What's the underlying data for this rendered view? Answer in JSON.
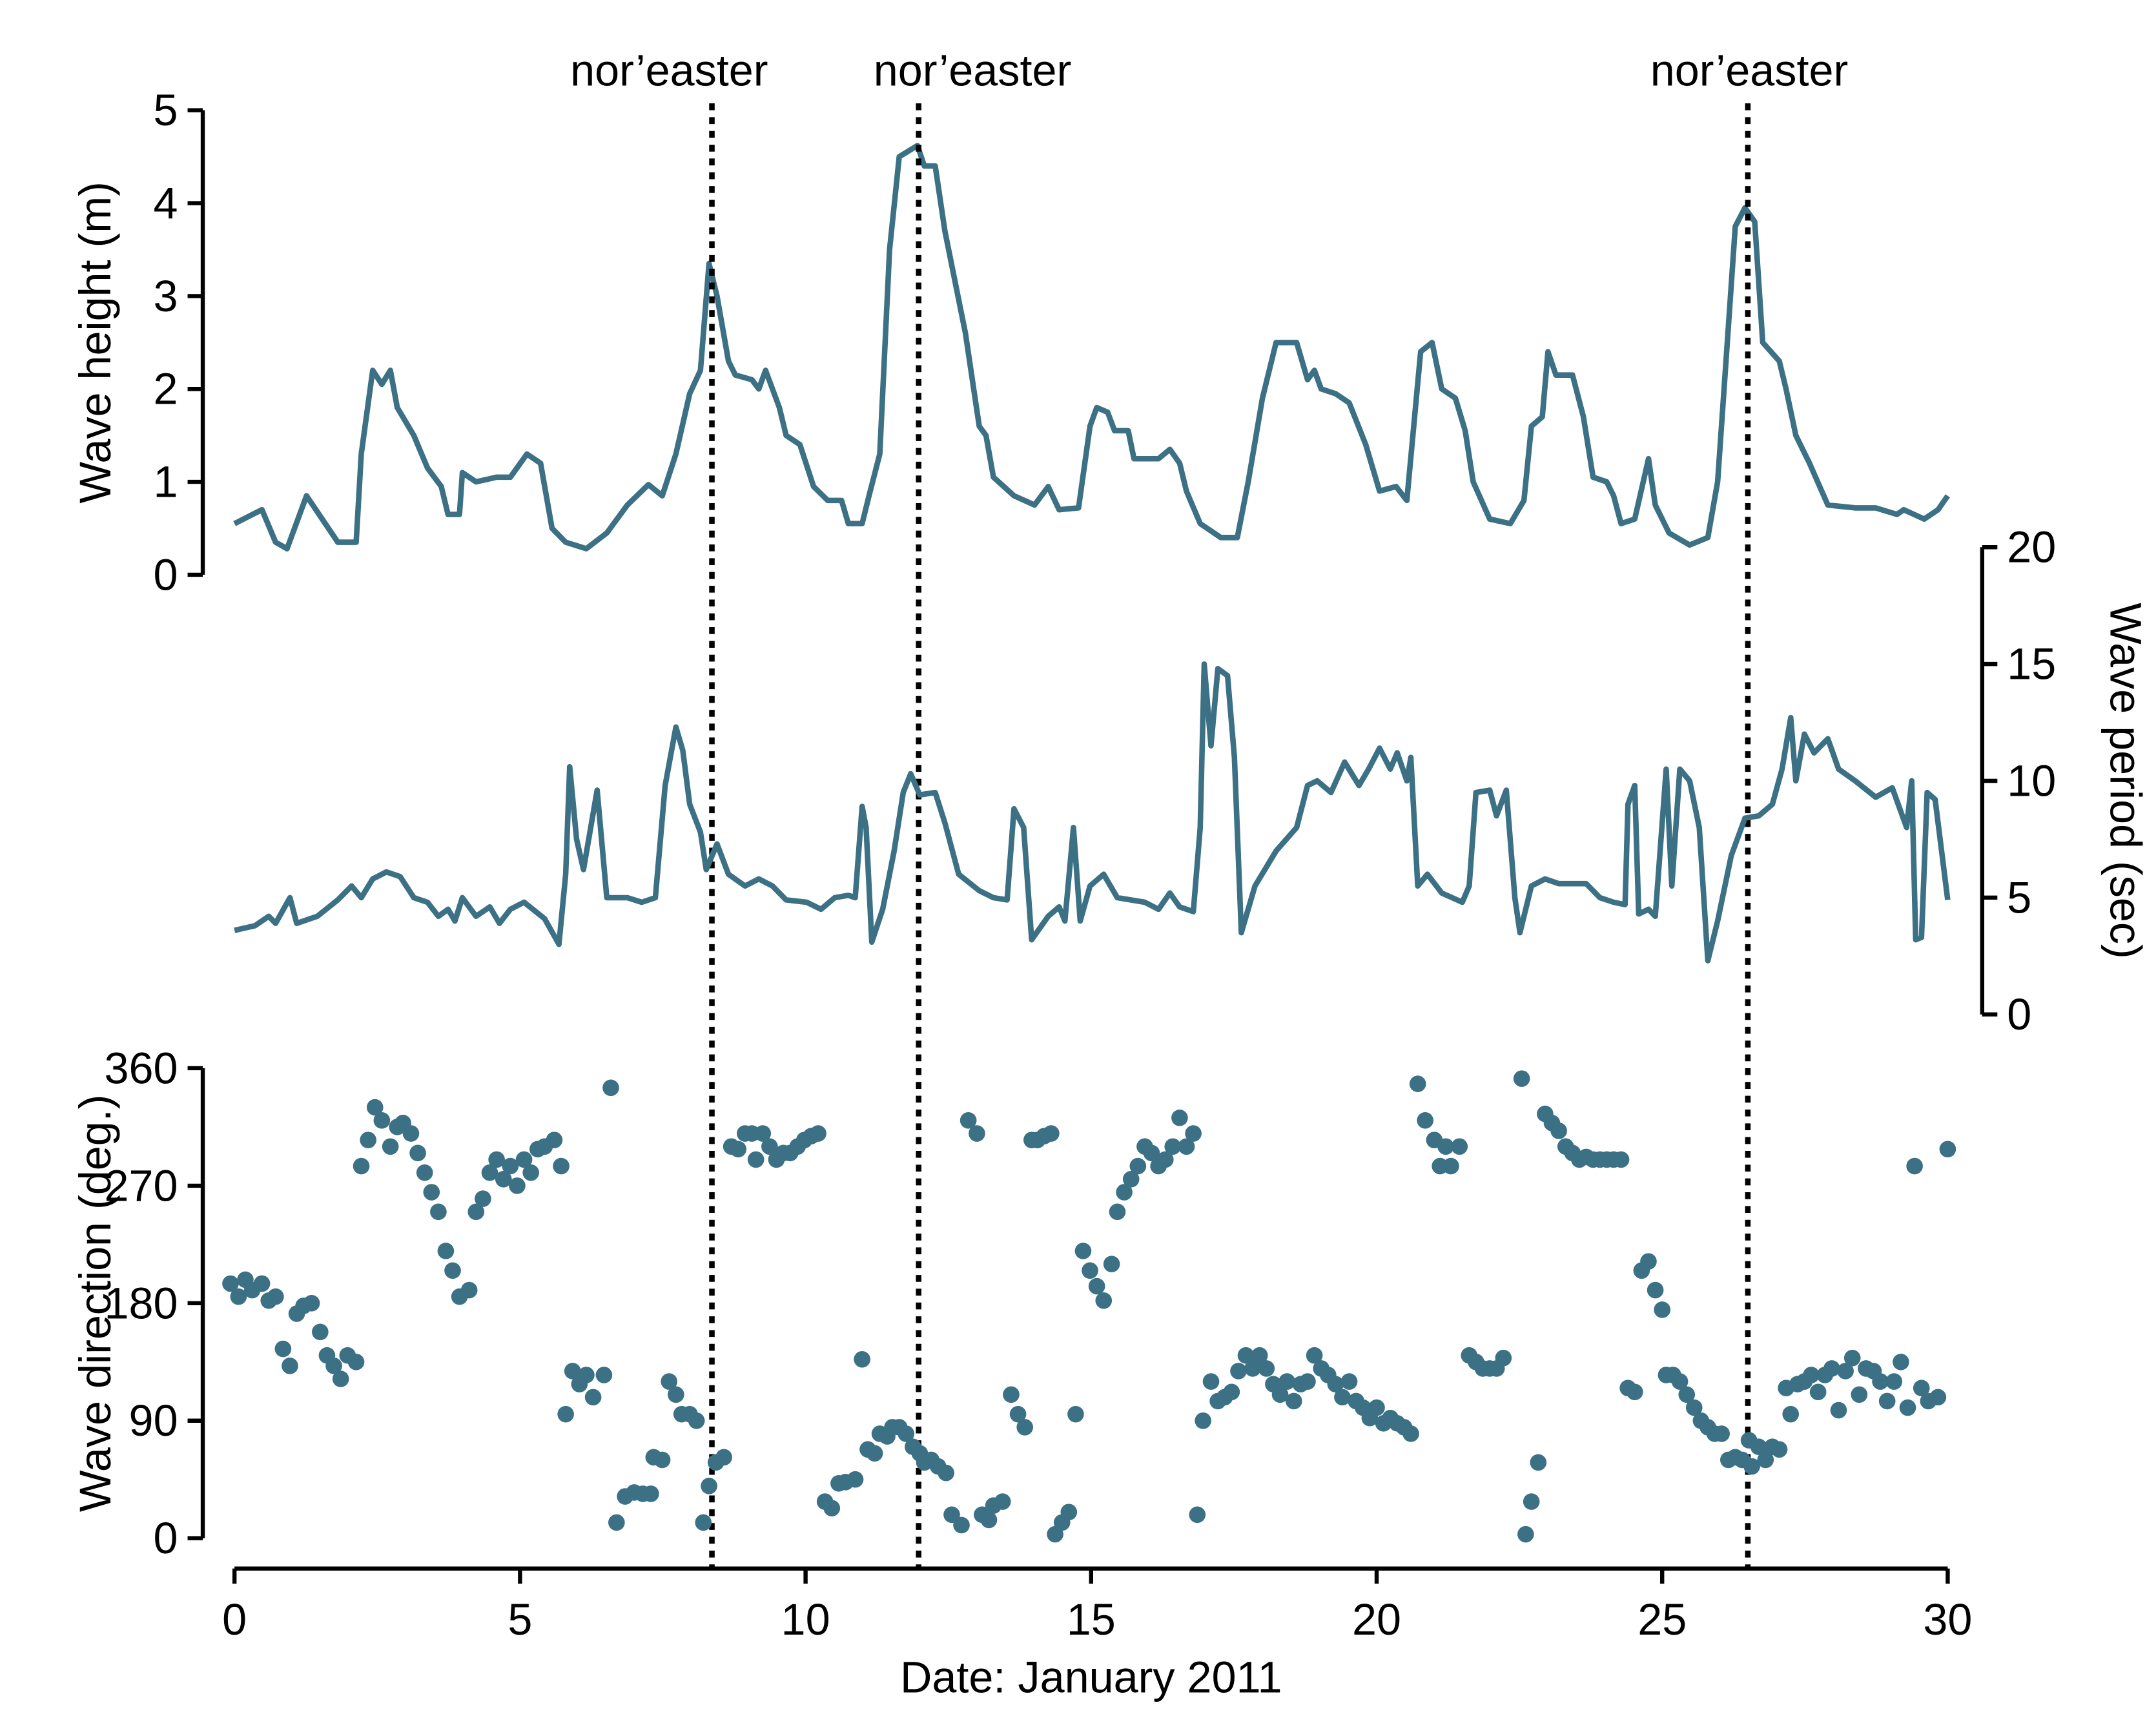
{
  "chart_data": [
    {
      "type": "line",
      "ylabel": "Wave height (m)",
      "color": "#3b7085",
      "xlim": [
        0,
        30
      ],
      "ylim": [
        0,
        5
      ],
      "yticks": [
        0,
        1,
        2,
        3,
        4,
        5
      ],
      "y_axis_side": "left",
      "annotations": [
        {
          "x": 8.36,
          "label": "nor’easter"
        },
        {
          "x": 11.98,
          "label": "nor’easter"
        },
        {
          "x": 26.5,
          "label": "nor’easter"
        }
      ],
      "x": [
        0,
        0.48,
        0.72,
        0.92,
        1.26,
        1.81,
        2.13,
        2.22,
        2.42,
        2.58,
        2.73,
        2.85,
        3.14,
        3.38,
        3.62,
        3.74,
        3.94,
        3.99,
        4.23,
        4.59,
        4.83,
        5.12,
        5.36,
        5.56,
        5.8,
        6.16,
        6.52,
        6.88,
        7.25,
        7.49,
        7.73,
        7.97,
        8.16,
        8.31,
        8.45,
        8.65,
        8.77,
        9.06,
        9.18,
        9.3,
        9.54,
        9.66,
        9.9,
        10.14,
        10.39,
        10.63,
        10.75,
        10.99,
        11.11,
        11.3,
        11.47,
        11.64,
        11.96,
        12.08,
        12.27,
        12.44,
        12.8,
        13.04,
        13.16,
        13.29,
        13.65,
        14.01,
        14.25,
        14.44,
        14.78,
        14.98,
        15.1,
        15.29,
        15.41,
        15.65,
        15.75,
        16.18,
        16.38,
        16.55,
        16.67,
        16.91,
        17.27,
        17.56,
        17.75,
        18.0,
        18.24,
        18.6,
        18.79,
        18.91,
        19.03,
        19.28,
        19.52,
        19.81,
        20.05,
        20.34,
        20.53,
        20.77,
        20.97,
        21.14,
        21.38,
        21.55,
        21.69,
        21.98,
        22.34,
        22.58,
        22.71,
        22.9,
        23.0,
        23.14,
        23.43,
        23.62,
        23.79,
        24.03,
        24.15,
        24.28,
        24.52,
        24.76,
        24.88,
        25.12,
        25.48,
        25.8,
        25.97,
        26.14,
        26.28,
        26.45,
        26.62,
        26.76,
        27.05,
        27.17,
        27.34,
        27.58,
        27.9,
        28.38,
        28.74,
        29.11,
        29.23,
        29.59,
        29.83,
        30
      ],
      "values": [
        0.55,
        0.7,
        0.35,
        0.28,
        0.85,
        0.35,
        0.35,
        1.3,
        2.2,
        2.05,
        2.2,
        1.8,
        1.5,
        1.15,
        0.95,
        0.65,
        0.65,
        1.1,
        1.0,
        1.05,
        1.05,
        1.3,
        1.2,
        0.5,
        0.35,
        0.28,
        0.45,
        0.75,
        0.97,
        0.85,
        1.3,
        1.95,
        2.2,
        3.35,
        3.0,
        2.3,
        2.15,
        2.1,
        2.0,
        2.2,
        1.8,
        1.5,
        1.4,
        0.95,
        0.8,
        0.8,
        0.55,
        0.55,
        0.85,
        1.3,
        3.5,
        4.5,
        4.62,
        4.4,
        4.4,
        3.7,
        2.6,
        1.6,
        1.5,
        1.05,
        0.85,
        0.75,
        0.95,
        0.7,
        0.72,
        1.6,
        1.8,
        1.75,
        1.55,
        1.55,
        1.25,
        1.25,
        1.35,
        1.2,
        0.9,
        0.55,
        0.4,
        0.4,
        1.0,
        1.9,
        2.5,
        2.5,
        2.1,
        2.2,
        2.0,
        1.95,
        1.85,
        1.4,
        0.9,
        0.95,
        0.8,
        2.4,
        2.5,
        2.0,
        1.9,
        1.55,
        1.0,
        0.6,
        0.55,
        0.8,
        1.6,
        1.7,
        2.4,
        2.15,
        2.15,
        1.7,
        1.05,
        1.0,
        0.85,
        0.55,
        0.6,
        1.25,
        0.75,
        0.45,
        0.32,
        0.4,
        1.0,
        2.5,
        3.75,
        3.95,
        3.8,
        2.5,
        2.3,
        2.0,
        1.5,
        1.2,
        0.75,
        0.72,
        0.72,
        0.65,
        0.7,
        0.6,
        0.7,
        0.85
      ]
    },
    {
      "type": "line",
      "ylabel": "Wave period (sec)",
      "color": "#3b7085",
      "xlim": [
        0,
        30
      ],
      "ylim": [
        0,
        20
      ],
      "yticks": [
        0,
        5,
        10,
        15,
        20
      ],
      "y_axis_side": "right",
      "x": [
        0,
        0.36,
        0.6,
        0.72,
        0.97,
        1.09,
        1.45,
        1.81,
        2.05,
        2.22,
        2.42,
        2.66,
        2.9,
        3.14,
        3.38,
        3.57,
        3.74,
        3.86,
        3.99,
        4.23,
        4.47,
        4.64,
        4.83,
        5.07,
        5.43,
        5.68,
        5.8,
        5.87,
        5.99,
        6.11,
        6.35,
        6.52,
        6.69,
        6.88,
        7.13,
        7.37,
        7.54,
        7.73,
        7.85,
        7.97,
        8.16,
        8.26,
        8.45,
        8.65,
        8.94,
        9.18,
        9.42,
        9.66,
        10.02,
        10.27,
        10.51,
        10.75,
        10.87,
        10.99,
        11.06,
        11.16,
        11.35,
        11.55,
        11.71,
        11.84,
        12.0,
        12.27,
        12.44,
        12.68,
        13.04,
        13.29,
        13.53,
        13.65,
        13.82,
        13.96,
        14.25,
        14.44,
        14.54,
        14.69,
        14.81,
        14.98,
        15.22,
        15.46,
        15.94,
        16.18,
        16.38,
        16.55,
        16.79,
        16.91,
        16.98,
        17.1,
        17.22,
        17.39,
        17.51,
        17.63,
        17.87,
        18.24,
        18.6,
        18.79,
        18.96,
        19.2,
        19.44,
        19.69,
        19.86,
        20.05,
        20.24,
        20.36,
        20.53,
        20.6,
        20.72,
        20.89,
        21.14,
        21.5,
        21.62,
        21.74,
        21.98,
        22.1,
        22.27,
        22.42,
        22.51,
        22.71,
        22.95,
        23.19,
        23.67,
        23.91,
        24.15,
        24.35,
        24.4,
        24.52,
        24.59,
        24.76,
        24.88,
        25.07,
        25.17,
        25.31,
        25.48,
        25.65,
        25.8,
        25.97,
        26.21,
        26.45,
        26.69,
        26.93,
        27.1,
        27.25,
        27.34,
        27.49,
        27.66,
        27.9,
        28.09,
        28.38,
        28.74,
        29.03,
        29.28,
        29.37,
        29.44,
        29.54,
        29.64,
        29.78,
        30
      ],
      "values": [
        3.6,
        3.8,
        4.2,
        3.9,
        5.0,
        3.9,
        4.2,
        4.9,
        5.5,
        5.0,
        5.8,
        6.1,
        5.9,
        5.0,
        4.8,
        4.2,
        4.5,
        4.0,
        5.0,
        4.2,
        4.6,
        3.9,
        4.5,
        4.8,
        4.1,
        3.0,
        6.0,
        10.6,
        7.5,
        6.2,
        9.6,
        5.0,
        5.0,
        5.0,
        4.8,
        5.0,
        9.8,
        12.3,
        11.3,
        9.0,
        7.8,
        6.2,
        7.3,
        6.0,
        5.5,
        5.8,
        5.5,
        4.9,
        4.8,
        4.5,
        5.0,
        5.1,
        5.0,
        8.9,
        8.0,
        3.1,
        4.5,
        7.0,
        9.5,
        10.3,
        9.4,
        9.5,
        8.2,
        6.0,
        5.3,
        5.0,
        4.9,
        8.8,
        8.0,
        3.2,
        4.2,
        4.6,
        4.0,
        8.0,
        4.0,
        5.5,
        6.0,
        5.0,
        4.8,
        4.5,
        5.2,
        4.6,
        4.4,
        8.0,
        15.0,
        11.5,
        14.8,
        14.5,
        11.0,
        3.5,
        5.5,
        7.0,
        8.0,
        9.8,
        10.0,
        9.5,
        10.8,
        9.8,
        10.5,
        11.4,
        10.5,
        11.2,
        10.0,
        11.0,
        5.5,
        6.0,
        5.2,
        4.8,
        5.5,
        9.5,
        9.6,
        8.5,
        9.6,
        5.0,
        3.5,
        5.5,
        5.8,
        5.6,
        5.6,
        5.0,
        4.8,
        4.7,
        9.0,
        9.8,
        4.3,
        4.5,
        4.2,
        10.5,
        5.5,
        10.5,
        10.0,
        8.0,
        2.3,
        4.0,
        6.8,
        8.4,
        8.5,
        9.0,
        10.5,
        12.7,
        10.0,
        12.0,
        11.2,
        11.8,
        10.5,
        10.0,
        9.3,
        9.7,
        8.0,
        10.0,
        3.2,
        3.3,
        9.5,
        9.2,
        4.9
      ]
    },
    {
      "type": "scatter",
      "ylabel": "Wave direction (deg.)",
      "xlabel": "Date: January 2011",
      "color": "#3b7085",
      "xlim": [
        0,
        30
      ],
      "xticks": [
        0,
        5,
        10,
        15,
        20,
        25,
        30
      ],
      "ylim": [
        0,
        360
      ],
      "yticks": [
        0,
        90,
        180,
        270,
        360
      ],
      "y_axis_side": "left",
      "x": [
        -0.07,
        0.07,
        0.19,
        0.31,
        0.48,
        0.6,
        0.72,
        0.85,
        0.97,
        1.09,
        1.21,
        1.35,
        1.5,
        1.62,
        1.74,
        1.86,
        1.98,
        2.13,
        2.22,
        2.34,
        2.46,
        2.58,
        2.73,
        2.85,
        2.95,
        3.09,
        3.21,
        3.33,
        3.45,
        3.57,
        3.7,
        3.82,
        3.94,
        4.11,
        4.23,
        4.35,
        4.47,
        4.59,
        4.71,
        4.83,
        4.95,
        5.07,
        5.19,
        5.31,
        5.43,
        5.6,
        5.72,
        5.8,
        5.92,
        6.04,
        6.16,
        6.28,
        6.47,
        6.59,
        6.69,
        6.84,
        7.0,
        7.15,
        7.29,
        7.34,
        7.49,
        7.61,
        7.73,
        7.83,
        7.97,
        8.09,
        8.21,
        8.31,
        8.43,
        8.57,
        8.7,
        8.82,
        8.94,
        9.06,
        9.13,
        9.25,
        9.37,
        9.49,
        9.61,
        9.73,
        9.86,
        9.98,
        10.1,
        10.22,
        10.34,
        10.46,
        10.58,
        10.7,
        10.87,
        10.99,
        11.09,
        11.21,
        11.3,
        11.43,
        11.52,
        11.64,
        11.76,
        11.88,
        12.0,
        12.08,
        12.2,
        12.32,
        12.46,
        12.56,
        12.73,
        12.85,
        13.0,
        13.09,
        13.21,
        13.29,
        13.45,
        13.6,
        13.72,
        13.84,
        13.96,
        14.06,
        14.18,
        14.3,
        14.37,
        14.49,
        14.61,
        14.73,
        14.86,
        14.98,
        15.1,
        15.22,
        15.36,
        15.46,
        15.58,
        15.7,
        15.82,
        15.94,
        16.06,
        16.18,
        16.3,
        16.43,
        16.55,
        16.67,
        16.79,
        16.86,
        16.96,
        17.1,
        17.22,
        17.34,
        17.46,
        17.58,
        17.71,
        17.83,
        17.95,
        18.07,
        18.19,
        18.31,
        18.43,
        18.55,
        18.67,
        18.79,
        18.91,
        19.03,
        19.15,
        19.28,
        19.4,
        19.52,
        19.64,
        19.76,
        19.88,
        20.0,
        20.12,
        20.24,
        20.36,
        20.48,
        20.6,
        20.72,
        20.85,
        21.01,
        21.11,
        21.21,
        21.3,
        21.45,
        21.62,
        21.74,
        21.86,
        21.98,
        22.1,
        22.22,
        22.54,
        22.61,
        22.71,
        22.83,
        22.95,
        23.07,
        23.19,
        23.31,
        23.43,
        23.55,
        23.67,
        23.79,
        23.91,
        24.03,
        24.15,
        24.28,
        24.4,
        24.52,
        24.64,
        24.76,
        24.88,
        25.0,
        25.07,
        25.19,
        25.31,
        25.43,
        25.56,
        25.68,
        25.8,
        25.92,
        26.04,
        26.16,
        26.28,
        26.4,
        26.52,
        26.57,
        26.69,
        26.81,
        26.93,
        27.05,
        27.17,
        27.25,
        27.37,
        27.49,
        27.61,
        27.73,
        27.85,
        27.97,
        28.09,
        28.21,
        28.33,
        28.45,
        28.57,
        28.7,
        28.82,
        28.94,
        29.06,
        29.18,
        29.3,
        29.42,
        29.54,
        29.66,
        29.83,
        30.0
      ],
      "values": [
        195,
        185,
        198,
        190,
        195,
        182,
        185,
        145,
        132,
        172,
        178,
        180,
        158,
        140,
        132,
        122,
        140,
        135,
        285,
        305,
        330,
        320,
        300,
        315,
        318,
        310,
        295,
        280,
        265,
        250,
        220,
        205,
        185,
        190,
        250,
        260,
        280,
        290,
        275,
        285,
        270,
        290,
        280,
        298,
        300,
        305,
        285,
        95,
        128,
        118,
        125,
        108,
        125,
        345,
        12,
        32,
        35,
        34,
        34,
        62,
        60,
        120,
        110,
        95,
        95,
        90,
        12,
        40,
        58,
        62,
        300,
        298,
        310,
        310,
        290,
        310,
        300,
        290,
        295,
        295,
        300,
        305,
        308,
        310,
        28,
        23,
        42,
        43,
        45,
        137,
        68,
        65,
        80,
        78,
        85,
        85,
        80,
        70,
        65,
        58,
        60,
        55,
        50,
        18,
        10,
        320,
        310,
        18,
        14,
        25,
        28,
        110,
        95,
        85,
        305,
        305,
        308,
        310,
        3,
        12,
        20,
        95,
        220,
        205,
        193,
        182,
        210,
        250,
        265,
        275,
        285,
        300,
        295,
        285,
        290,
        300,
        322,
        300,
        310,
        18,
        90,
        120,
        105,
        108,
        112,
        128,
        140,
        130,
        140,
        130,
        118,
        110,
        120,
        105,
        118,
        120,
        140,
        130,
        125,
        118,
        108,
        120,
        105,
        100,
        92,
        100,
        88,
        92,
        88,
        85,
        80,
        348,
        320,
        305,
        285,
        300,
        285,
        300,
        140,
        135,
        130,
        130,
        130,
        138,
        352,
        3,
        28,
        58,
        325,
        318,
        312,
        300,
        295,
        290,
        292,
        290,
        290,
        290,
        290,
        290,
        115,
        112,
        205,
        212,
        190,
        175,
        125,
        125,
        120,
        110,
        100,
        90,
        85,
        80,
        80,
        60,
        62,
        60,
        75,
        55,
        70,
        60,
        70,
        68,
        115,
        95,
        118,
        120,
        125,
        112,
        125,
        130,
        98,
        128,
        138,
        110,
        130,
        128,
        120,
        105,
        120,
        135,
        100,
        285,
        115,
        105,
        108,
        298
      ]
    }
  ]
}
